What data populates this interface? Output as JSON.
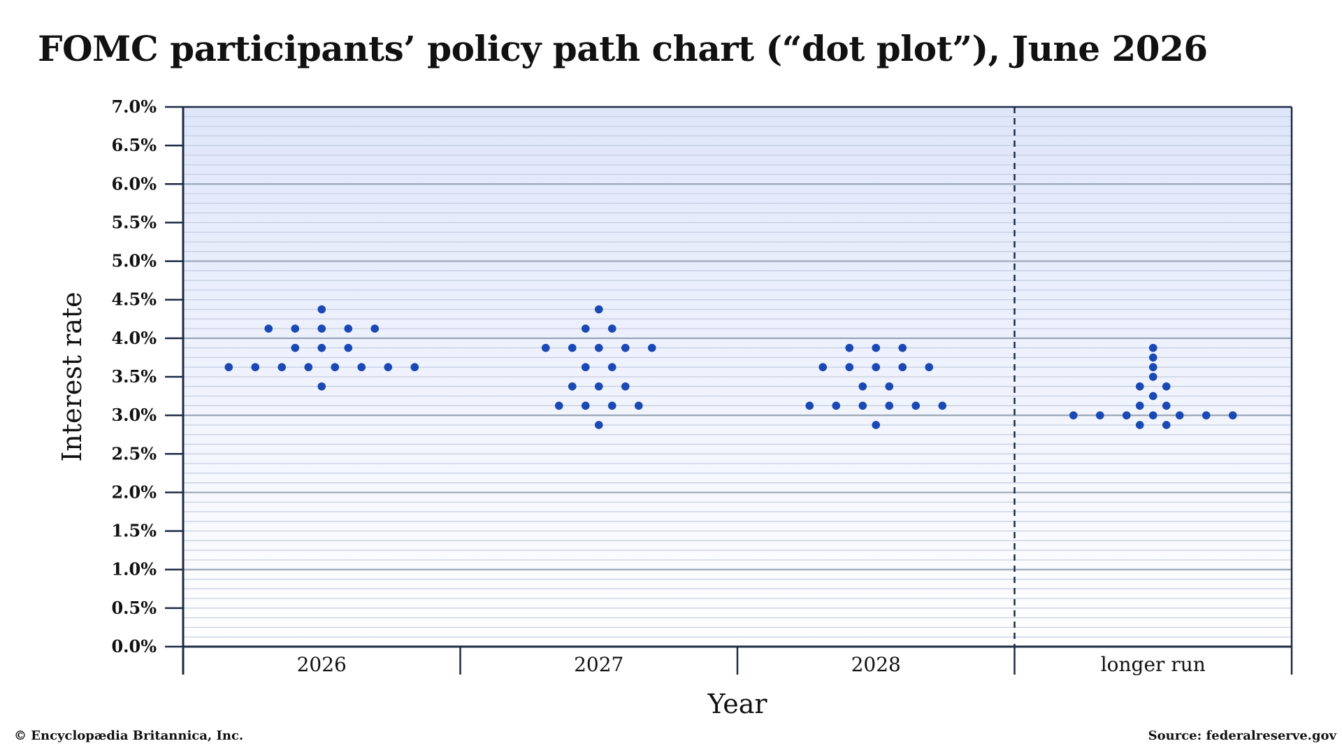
{
  "title": "FOMC participants’ policy path chart (“dot plot”), June 2026",
  "credit": "© Encyclopædia Britannica, Inc.",
  "source": "Source: federalreserve.gov",
  "colors": {
    "dot": "#1a48b4",
    "frame": "#1c2a44",
    "plot_top": "#dfe6fa",
    "plot_bottom": "#ffffff",
    "major_grid": "#9aa6b8",
    "minor_grid": "#c3cce0"
  },
  "chart_data": {
    "type": "scatter",
    "title": "FOMC participants’ policy path chart (“dot plot”), June 2026",
    "xlabel": "Year",
    "ylabel": "Interest rate",
    "ylim": [
      0,
      7
    ],
    "y_ticks": [
      "0.0%",
      "0.5%",
      "1.0%",
      "1.5%",
      "2.0%",
      "2.5%",
      "3.0%",
      "3.5%",
      "4.0%",
      "4.5%",
      "5.0%",
      "5.5%",
      "6.0%",
      "6.5%",
      "7.0%"
    ],
    "grid": true,
    "categories": [
      "2026",
      "2027",
      "2028",
      "longer run"
    ],
    "separator_before": "longer run",
    "groups": [
      {
        "category": "2026",
        "rates": [
          {
            "rate": 4.375,
            "count": 1
          },
          {
            "rate": 4.125,
            "count": 5
          },
          {
            "rate": 3.875,
            "count": 3
          },
          {
            "rate": 3.625,
            "count": 8
          },
          {
            "rate": 3.375,
            "count": 1
          }
        ]
      },
      {
        "category": "2027",
        "rates": [
          {
            "rate": 4.375,
            "count": 1
          },
          {
            "rate": 4.125,
            "count": 2
          },
          {
            "rate": 3.875,
            "count": 5
          },
          {
            "rate": 3.625,
            "count": 2
          },
          {
            "rate": 3.375,
            "count": 3
          },
          {
            "rate": 3.125,
            "count": 4
          },
          {
            "rate": 2.875,
            "count": 1
          }
        ]
      },
      {
        "category": "2028",
        "rates": [
          {
            "rate": 3.875,
            "count": 3
          },
          {
            "rate": 3.625,
            "count": 5
          },
          {
            "rate": 3.375,
            "count": 2
          },
          {
            "rate": 3.125,
            "count": 6
          },
          {
            "rate": 2.875,
            "count": 1
          }
        ]
      },
      {
        "category": "longer run",
        "rates": [
          {
            "rate": 3.875,
            "count": 1
          },
          {
            "rate": 3.75,
            "count": 1
          },
          {
            "rate": 3.625,
            "count": 1
          },
          {
            "rate": 3.5,
            "count": 1
          },
          {
            "rate": 3.375,
            "count": 2
          },
          {
            "rate": 3.25,
            "count": 1
          },
          {
            "rate": 3.125,
            "count": 2
          },
          {
            "rate": 3.0,
            "count": 7
          },
          {
            "rate": 2.875,
            "count": 2
          }
        ]
      }
    ]
  }
}
